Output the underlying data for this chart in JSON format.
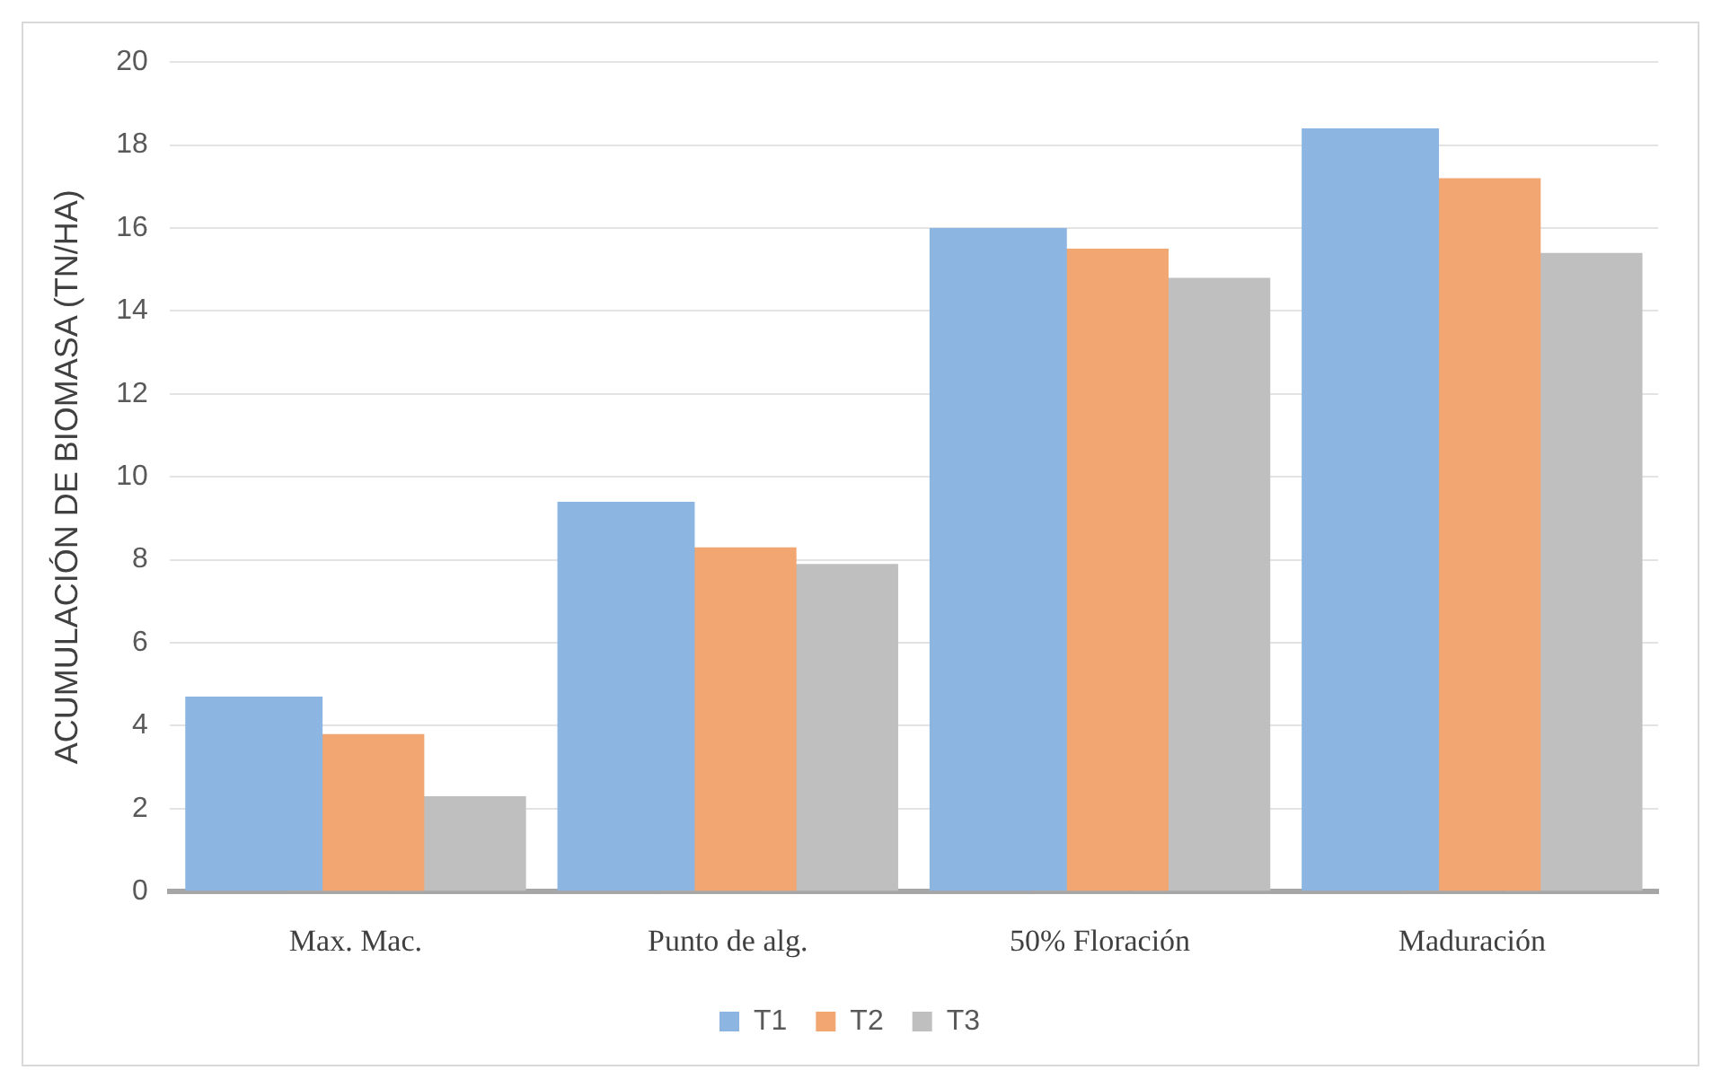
{
  "chart_data": {
    "type": "bar",
    "ylabel": "ACUMULACIÓN DE BIOMASA (TN/HA)",
    "categories": [
      "Max. Mac.",
      "Punto de alg.",
      "50% Floración",
      "Maduración"
    ],
    "series": [
      {
        "name": "T1",
        "color": "#8cb5e1",
        "values": [
          4.7,
          9.4,
          16.0,
          18.4
        ]
      },
      {
        "name": "T2",
        "color": "#f2a672",
        "values": [
          3.8,
          8.3,
          15.5,
          17.2
        ]
      },
      {
        "name": "T3",
        "color": "#bfbfbf",
        "values": [
          2.3,
          7.9,
          14.8,
          15.4
        ]
      }
    ],
    "ylim": [
      0,
      20
    ],
    "yticks": [
      0,
      2,
      4,
      6,
      8,
      10,
      12,
      14,
      16,
      18,
      20
    ],
    "grid": "y",
    "legend": "bottom"
  }
}
